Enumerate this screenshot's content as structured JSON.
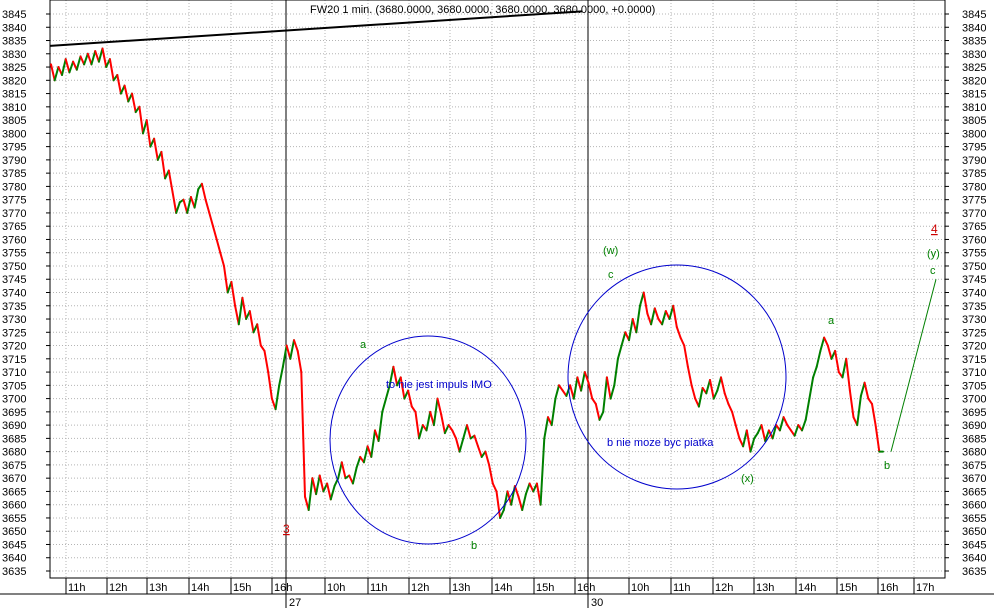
{
  "chart_data": {
    "type": "line",
    "title": "FW20 1 min. (3680.0000, 3680.0000, 3680.0000, 3680.0000, +0.0000)",
    "xlabel": "",
    "ylabel": "",
    "ylim": [
      3635,
      3845
    ],
    "y_ticks": [
      3635,
      3640,
      3645,
      3650,
      3655,
      3660,
      3665,
      3670,
      3675,
      3680,
      3685,
      3690,
      3695,
      3700,
      3705,
      3710,
      3715,
      3720,
      3725,
      3730,
      3735,
      3740,
      3745,
      3750,
      3755,
      3760,
      3765,
      3770,
      3775,
      3780,
      3785,
      3790,
      3795,
      3800,
      3805,
      3810,
      3815,
      3820,
      3825,
      3830,
      3835,
      3840,
      3845
    ],
    "x_ticks": [
      "11h",
      "12h",
      "13h",
      "14h",
      "15h",
      "16h",
      "10h",
      "11h",
      "12h",
      "13h",
      "14h",
      "15h",
      "16h",
      "10h",
      "11h",
      "12h",
      "13h",
      "14h",
      "15h",
      "16h",
      "17h"
    ],
    "day_labels": [
      "27",
      "30"
    ],
    "grid": true,
    "up_color": "#008000",
    "down_color": "#ff0000",
    "series": [
      {
        "values": [
          3826,
          3820,
          3825,
          3822,
          3828,
          3823,
          3827,
          3824,
          3829,
          3826,
          3830,
          3826,
          3831,
          3827,
          3832,
          3825,
          3828,
          3820,
          3822,
          3815,
          3818,
          3812,
          3815,
          3808,
          3810,
          3800,
          3805,
          3795,
          3798,
          3790,
          3793,
          3783,
          3786,
          3778,
          3770,
          3774,
          3775,
          3770,
          3776,
          3772,
          3779,
          3781,
          3775,
          3770,
          3765,
          3760,
          3755,
          3750,
          3740,
          3744,
          3735,
          3728,
          3738,
          3730,
          3733,
          3725,
          3728,
          3720,
          3718,
          3710,
          3700,
          3696,
          3705,
          3712,
          3720,
          3715,
          3722,
          3718,
          3710,
          3663,
          3658,
          3670,
          3664,
          3671,
          3665,
          3668,
          3662,
          3667,
          3670,
          3676,
          3670,
          3671,
          3668,
          3674,
          3678,
          3676,
          3682,
          3678,
          3688,
          3684,
          3695,
          3700,
          3705,
          3712,
          3705,
          3708,
          3700,
          3703,
          3697,
          3695,
          3685,
          3690,
          3688,
          3695,
          3690,
          3700,
          3694,
          3687,
          3690,
          3688,
          3685,
          3680,
          3685,
          3690,
          3685,
          3686,
          3682,
          3678,
          3680,
          3675,
          3668,
          3665,
          3655,
          3658,
          3665,
          3660,
          3667,
          3663,
          3658,
          3664,
          3668,
          3665,
          3668,
          3660,
          3685,
          3693,
          3690,
          3700,
          3705,
          3703,
          3701,
          3705,
          3700,
          3708,
          3703,
          3710,
          3706,
          3700,
          3698,
          3692,
          3695,
          3708,
          3700,
          3705,
          3715,
          3720,
          3725,
          3722,
          3730,
          3725,
          3735,
          3740,
          3732,
          3728,
          3734,
          3730,
          3728,
          3733,
          3730,
          3735,
          3727,
          3723,
          3720,
          3712,
          3705,
          3700,
          3697,
          3704,
          3702,
          3707,
          3700,
          3703,
          3708,
          3702,
          3698,
          3695,
          3690,
          3685,
          3682,
          3688,
          3680,
          3685,
          3687,
          3690,
          3684,
          3688,
          3685,
          3690,
          3688,
          3693,
          3690,
          3688,
          3686,
          3690,
          3688,
          3692,
          3700,
          3708,
          3712,
          3718,
          3723,
          3720,
          3715,
          3718,
          3710,
          3708,
          3715,
          3703,
          3693,
          3690,
          3701,
          3706,
          3700,
          3698,
          3690,
          3680,
          3680
        ],
        "color": "#008000"
      },
      {
        "values": [
          3680,
          3745
        ],
        "color": "#008000"
      },
      {
        "values": [
          3833,
          3846
        ],
        "color": "#000000"
      }
    ],
    "annotations": [
      {
        "text": "3",
        "color": "#cc0000"
      },
      {
        "text": "a",
        "color": "#008000"
      },
      {
        "text": "b",
        "color": "#008000"
      },
      {
        "text": "c",
        "color": "#008000"
      },
      {
        "text": "(w)",
        "color": "#008000"
      },
      {
        "text": "(x)",
        "color": "#008000"
      },
      {
        "text": "a",
        "color": "#008000"
      },
      {
        "text": "b",
        "color": "#008000"
      },
      {
        "text": "4",
        "color": "#cc0000"
      },
      {
        "text": "(y)",
        "color": "#008000"
      },
      {
        "text": "c",
        "color": "#008000"
      },
      {
        "text": "to nie jest impuls IMO",
        "color": "#0000cc"
      },
      {
        "text": "b nie moze byc piatka",
        "color": "#0000cc"
      }
    ],
    "circle_color": "#0000cc"
  }
}
